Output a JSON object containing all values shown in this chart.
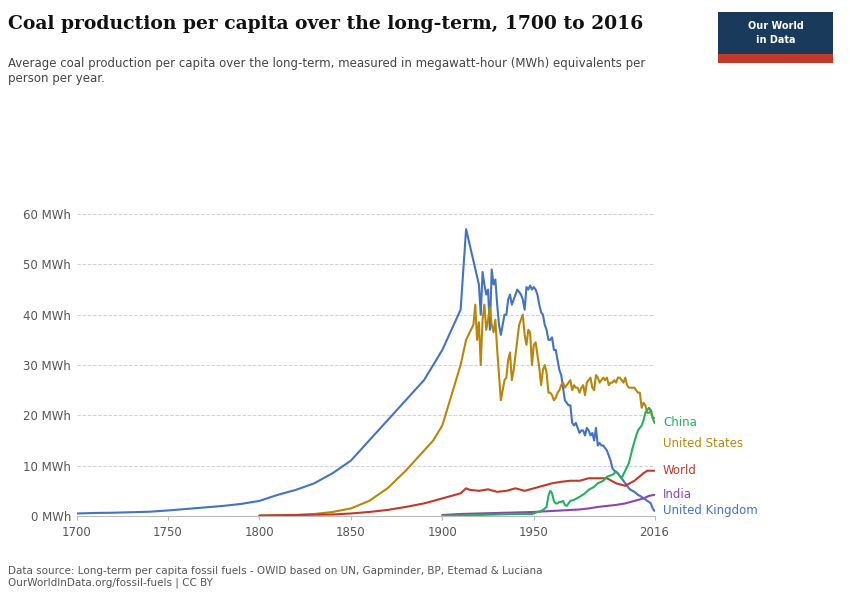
{
  "title": "Coal production per capita over the long-term, 1700 to 2016",
  "subtitle": "Average coal production per capita over the long-term, measured in megawatt-hour (MWh) equivalents per\nperson per year.",
  "datasource": "Data source: Long-term per capita fossil fuels - OWID based on UN, Gapminder, BP, Etemad & Luciana\nOurWorldInData.org/fossil-fuels | CC BY",
  "ylim": [
    0,
    62
  ],
  "yticks": [
    0,
    10,
    20,
    30,
    40,
    50,
    60
  ],
  "ytick_labels": [
    "0 MWh",
    "10 MWh",
    "20 MWh",
    "30 MWh",
    "40 MWh",
    "50 MWh",
    "60 MWh"
  ],
  "xlim": [
    1700,
    2016
  ],
  "xticks": [
    1700,
    1750,
    1800,
    1850,
    1900,
    1950,
    2016
  ],
  "background_color": "#ffffff",
  "grid_color": "#cccccc",
  "series": {
    "United Kingdom": {
      "color": "#4472c4",
      "data": [
        [
          1700,
          0.5
        ],
        [
          1710,
          0.6
        ],
        [
          1720,
          0.65
        ],
        [
          1730,
          0.75
        ],
        [
          1740,
          0.85
        ],
        [
          1750,
          1.1
        ],
        [
          1760,
          1.4
        ],
        [
          1770,
          1.7
        ],
        [
          1780,
          2.0
        ],
        [
          1790,
          2.4
        ],
        [
          1800,
          3.0
        ],
        [
          1810,
          4.2
        ],
        [
          1820,
          5.2
        ],
        [
          1830,
          6.5
        ],
        [
          1840,
          8.5
        ],
        [
          1850,
          11.0
        ],
        [
          1860,
          15.0
        ],
        [
          1870,
          19.0
        ],
        [
          1880,
          23.0
        ],
        [
          1890,
          27.0
        ],
        [
          1900,
          33.0
        ],
        [
          1905,
          37.0
        ],
        [
          1910,
          41.0
        ],
        [
          1913,
          57.0
        ],
        [
          1920,
          46.0
        ],
        [
          1921,
          40.0
        ],
        [
          1922,
          48.5
        ],
        [
          1923,
          46.0
        ],
        [
          1924,
          44.0
        ],
        [
          1925,
          45.0
        ],
        [
          1926,
          37.0
        ],
        [
          1927,
          49.0
        ],
        [
          1928,
          46.0
        ],
        [
          1929,
          47.0
        ],
        [
          1930,
          42.0
        ],
        [
          1931,
          38.0
        ],
        [
          1932,
          36.0
        ],
        [
          1933,
          38.0
        ],
        [
          1934,
          40.0
        ],
        [
          1935,
          40.0
        ],
        [
          1936,
          43.0
        ],
        [
          1937,
          44.0
        ],
        [
          1938,
          42.0
        ],
        [
          1939,
          43.0
        ],
        [
          1940,
          44.0
        ],
        [
          1941,
          45.0
        ],
        [
          1942,
          44.5
        ],
        [
          1943,
          44.0
        ],
        [
          1944,
          43.0
        ],
        [
          1945,
          41.0
        ],
        [
          1946,
          45.5
        ],
        [
          1947,
          45.0
        ],
        [
          1948,
          45.8
        ],
        [
          1949,
          45.0
        ],
        [
          1950,
          45.5
        ],
        [
          1951,
          45.0
        ],
        [
          1952,
          44.0
        ],
        [
          1953,
          42.0
        ],
        [
          1954,
          40.5
        ],
        [
          1955,
          40.0
        ],
        [
          1956,
          38.0
        ],
        [
          1957,
          37.0
        ],
        [
          1958,
          35.0
        ],
        [
          1959,
          35.0
        ],
        [
          1960,
          35.5
        ],
        [
          1961,
          33.0
        ],
        [
          1962,
          33.0
        ],
        [
          1963,
          31.0
        ],
        [
          1964,
          29.0
        ],
        [
          1965,
          28.0
        ],
        [
          1966,
          25.5
        ],
        [
          1967,
          23.0
        ],
        [
          1968,
          22.5
        ],
        [
          1969,
          22.0
        ],
        [
          1970,
          22.0
        ],
        [
          1971,
          18.5
        ],
        [
          1972,
          18.0
        ],
        [
          1973,
          18.5
        ],
        [
          1974,
          17.5
        ],
        [
          1975,
          16.5
        ],
        [
          1976,
          17.0
        ],
        [
          1977,
          17.0
        ],
        [
          1978,
          16.0
        ],
        [
          1979,
          17.5
        ],
        [
          1980,
          17.0
        ],
        [
          1981,
          16.0
        ],
        [
          1982,
          16.5
        ],
        [
          1983,
          15.0
        ],
        [
          1984,
          17.5
        ],
        [
          1985,
          14.0
        ],
        [
          1986,
          14.5
        ],
        [
          1987,
          14.0
        ],
        [
          1988,
          14.0
        ],
        [
          1989,
          13.5
        ],
        [
          1990,
          13.0
        ],
        [
          1991,
          12.0
        ],
        [
          1992,
          11.0
        ],
        [
          1993,
          9.5
        ],
        [
          1994,
          9.0
        ],
        [
          1995,
          8.8
        ],
        [
          1996,
          8.5
        ],
        [
          1997,
          8.0
        ],
        [
          1998,
          7.5
        ],
        [
          1999,
          7.0
        ],
        [
          2000,
          6.5
        ],
        [
          2001,
          6.0
        ],
        [
          2002,
          5.5
        ],
        [
          2003,
          5.2
        ],
        [
          2004,
          5.0
        ],
        [
          2005,
          4.8
        ],
        [
          2006,
          4.5
        ],
        [
          2007,
          4.2
        ],
        [
          2008,
          4.0
        ],
        [
          2009,
          3.8
        ],
        [
          2010,
          3.5
        ],
        [
          2011,
          3.3
        ],
        [
          2012,
          3.0
        ],
        [
          2013,
          2.8
        ],
        [
          2014,
          2.5
        ],
        [
          2015,
          1.5
        ],
        [
          2016,
          1.0
        ]
      ]
    },
    "United States": {
      "color": "#b8860b",
      "data": [
        [
          1800,
          0.05
        ],
        [
          1810,
          0.1
        ],
        [
          1820,
          0.2
        ],
        [
          1830,
          0.4
        ],
        [
          1840,
          0.8
        ],
        [
          1850,
          1.5
        ],
        [
          1860,
          3.0
        ],
        [
          1870,
          5.5
        ],
        [
          1880,
          9.0
        ],
        [
          1890,
          13.0
        ],
        [
          1895,
          15.0
        ],
        [
          1900,
          18.0
        ],
        [
          1905,
          24.0
        ],
        [
          1910,
          30.0
        ],
        [
          1913,
          35.0
        ],
        [
          1917,
          38.0
        ],
        [
          1918,
          42.0
        ],
        [
          1919,
          35.0
        ],
        [
          1920,
          38.5
        ],
        [
          1921,
          30.0
        ],
        [
          1922,
          39.0
        ],
        [
          1923,
          42.0
        ],
        [
          1924,
          37.0
        ],
        [
          1925,
          39.0
        ],
        [
          1926,
          41.5
        ],
        [
          1927,
          38.0
        ],
        [
          1928,
          36.5
        ],
        [
          1929,
          39.0
        ],
        [
          1930,
          33.0
        ],
        [
          1931,
          28.0
        ],
        [
          1932,
          23.0
        ],
        [
          1933,
          25.0
        ],
        [
          1934,
          27.0
        ],
        [
          1935,
          27.5
        ],
        [
          1936,
          31.0
        ],
        [
          1937,
          32.5
        ],
        [
          1938,
          27.0
        ],
        [
          1939,
          29.0
        ],
        [
          1940,
          32.0
        ],
        [
          1941,
          35.0
        ],
        [
          1942,
          38.0
        ],
        [
          1943,
          39.0
        ],
        [
          1944,
          40.0
        ],
        [
          1945,
          36.0
        ],
        [
          1946,
          34.0
        ],
        [
          1947,
          37.0
        ],
        [
          1948,
          36.5
        ],
        [
          1949,
          30.0
        ],
        [
          1950,
          34.0
        ],
        [
          1951,
          34.5
        ],
        [
          1952,
          32.0
        ],
        [
          1953,
          29.5
        ],
        [
          1954,
          26.0
        ],
        [
          1955,
          29.0
        ],
        [
          1956,
          30.0
        ],
        [
          1957,
          28.5
        ],
        [
          1958,
          24.5
        ],
        [
          1959,
          24.5
        ],
        [
          1960,
          24.0
        ],
        [
          1961,
          23.0
        ],
        [
          1962,
          23.5
        ],
        [
          1963,
          24.5
        ],
        [
          1964,
          25.0
        ],
        [
          1965,
          26.0
        ],
        [
          1966,
          26.5
        ],
        [
          1967,
          25.5
        ],
        [
          1968,
          26.0
        ],
        [
          1969,
          26.5
        ],
        [
          1970,
          27.0
        ],
        [
          1971,
          25.0
        ],
        [
          1972,
          26.0
        ],
        [
          1973,
          25.5
        ],
        [
          1974,
          25.5
        ],
        [
          1975,
          24.5
        ],
        [
          1976,
          25.5
        ],
        [
          1977,
          26.0
        ],
        [
          1978,
          24.0
        ],
        [
          1979,
          26.5
        ],
        [
          1980,
          27.0
        ],
        [
          1981,
          27.5
        ],
        [
          1982,
          25.5
        ],
        [
          1983,
          25.0
        ],
        [
          1984,
          28.0
        ],
        [
          1985,
          27.5
        ],
        [
          1986,
          26.5
        ],
        [
          1987,
          27.0
        ],
        [
          1988,
          27.5
        ],
        [
          1989,
          27.0
        ],
        [
          1990,
          27.5
        ],
        [
          1991,
          26.0
        ],
        [
          1992,
          26.5
        ],
        [
          1993,
          26.5
        ],
        [
          1994,
          27.0
        ],
        [
          1995,
          26.5
        ],
        [
          1996,
          27.5
        ],
        [
          1997,
          27.5
        ],
        [
          1998,
          27.0
        ],
        [
          1999,
          26.5
        ],
        [
          2000,
          27.5
        ],
        [
          2001,
          26.0
        ],
        [
          2002,
          25.5
        ],
        [
          2003,
          25.5
        ],
        [
          2004,
          25.5
        ],
        [
          2005,
          25.5
        ],
        [
          2006,
          25.0
        ],
        [
          2007,
          24.5
        ],
        [
          2008,
          24.5
        ],
        [
          2009,
          21.5
        ],
        [
          2010,
          22.5
        ],
        [
          2011,
          22.0
        ],
        [
          2012,
          20.5
        ],
        [
          2013,
          20.5
        ],
        [
          2014,
          21.0
        ],
        [
          2015,
          19.5
        ],
        [
          2016,
          19.5
        ]
      ]
    },
    "World": {
      "color": "#c0392b",
      "data": [
        [
          1800,
          0.1
        ],
        [
          1820,
          0.2
        ],
        [
          1840,
          0.3
        ],
        [
          1850,
          0.5
        ],
        [
          1860,
          0.8
        ],
        [
          1870,
          1.2
        ],
        [
          1880,
          1.8
        ],
        [
          1890,
          2.5
        ],
        [
          1900,
          3.5
        ],
        [
          1905,
          4.0
        ],
        [
          1910,
          4.5
        ],
        [
          1913,
          5.5
        ],
        [
          1915,
          5.2
        ],
        [
          1920,
          5.0
        ],
        [
          1925,
          5.3
        ],
        [
          1930,
          4.8
        ],
        [
          1935,
          5.0
        ],
        [
          1940,
          5.5
        ],
        [
          1945,
          5.0
        ],
        [
          1950,
          5.5
        ],
        [
          1955,
          6.0
        ],
        [
          1960,
          6.5
        ],
        [
          1965,
          6.8
        ],
        [
          1970,
          7.0
        ],
        [
          1975,
          7.0
        ],
        [
          1980,
          7.5
        ],
        [
          1985,
          7.5
        ],
        [
          1990,
          7.5
        ],
        [
          1995,
          6.5
        ],
        [
          2000,
          6.0
        ],
        [
          2005,
          7.0
        ],
        [
          2010,
          8.5
        ],
        [
          2012,
          9.0
        ],
        [
          2014,
          9.0
        ],
        [
          2016,
          9.0
        ]
      ]
    },
    "China": {
      "color": "#27ae60",
      "data": [
        [
          1900,
          0.05
        ],
        [
          1910,
          0.1
        ],
        [
          1920,
          0.2
        ],
        [
          1930,
          0.3
        ],
        [
          1940,
          0.4
        ],
        [
          1949,
          0.4
        ],
        [
          1950,
          0.5
        ],
        [
          1952,
          0.8
        ],
        [
          1954,
          1.0
        ],
        [
          1955,
          1.2
        ],
        [
          1957,
          1.8
        ],
        [
          1958,
          4.0
        ],
        [
          1959,
          5.0
        ],
        [
          1960,
          4.5
        ],
        [
          1961,
          3.0
        ],
        [
          1962,
          2.5
        ],
        [
          1963,
          2.5
        ],
        [
          1964,
          2.8
        ],
        [
          1965,
          2.8
        ],
        [
          1966,
          3.0
        ],
        [
          1967,
          2.2
        ],
        [
          1968,
          2.0
        ],
        [
          1969,
          2.5
        ],
        [
          1970,
          3.0
        ],
        [
          1972,
          3.2
        ],
        [
          1975,
          3.8
        ],
        [
          1978,
          4.5
        ],
        [
          1980,
          5.2
        ],
        [
          1983,
          5.8
        ],
        [
          1985,
          6.5
        ],
        [
          1988,
          7.0
        ],
        [
          1990,
          7.8
        ],
        [
          1993,
          8.2
        ],
        [
          1995,
          8.8
        ],
        [
          1998,
          7.5
        ],
        [
          2000,
          9.0
        ],
        [
          2002,
          10.5
        ],
        [
          2004,
          13.5
        ],
        [
          2006,
          16.0
        ],
        [
          2007,
          17.0
        ],
        [
          2008,
          17.5
        ],
        [
          2009,
          18.0
        ],
        [
          2010,
          19.0
        ],
        [
          2011,
          20.5
        ],
        [
          2012,
          21.0
        ],
        [
          2013,
          21.5
        ],
        [
          2014,
          21.0
        ],
        [
          2015,
          19.5
        ],
        [
          2016,
          18.5
        ]
      ]
    },
    "India": {
      "color": "#8e44ad",
      "data": [
        [
          1900,
          0.2
        ],
        [
          1910,
          0.4
        ],
        [
          1920,
          0.5
        ],
        [
          1930,
          0.6
        ],
        [
          1940,
          0.7
        ],
        [
          1950,
          0.8
        ],
        [
          1960,
          1.0
        ],
        [
          1970,
          1.2
        ],
        [
          1975,
          1.3
        ],
        [
          1980,
          1.5
        ],
        [
          1985,
          1.8
        ],
        [
          1990,
          2.0
        ],
        [
          1995,
          2.2
        ],
        [
          2000,
          2.5
        ],
        [
          2005,
          3.0
        ],
        [
          2010,
          3.5
        ],
        [
          2013,
          4.0
        ],
        [
          2016,
          4.2
        ]
      ]
    }
  },
  "label_annotations": [
    {
      "label": "China",
      "y": 18.5,
      "color": "#27ae60"
    },
    {
      "label": "United States",
      "y": 14.5,
      "color": "#b8860b"
    },
    {
      "label": "World",
      "y": 9.0,
      "color": "#c0392b"
    },
    {
      "label": "India",
      "y": 4.2,
      "color": "#8e44ad"
    },
    {
      "label": "United Kingdom",
      "y": 1.0,
      "color": "#4472c4"
    }
  ],
  "owid_badge_color": "#1a3a5c",
  "owid_red": "#c0392b"
}
